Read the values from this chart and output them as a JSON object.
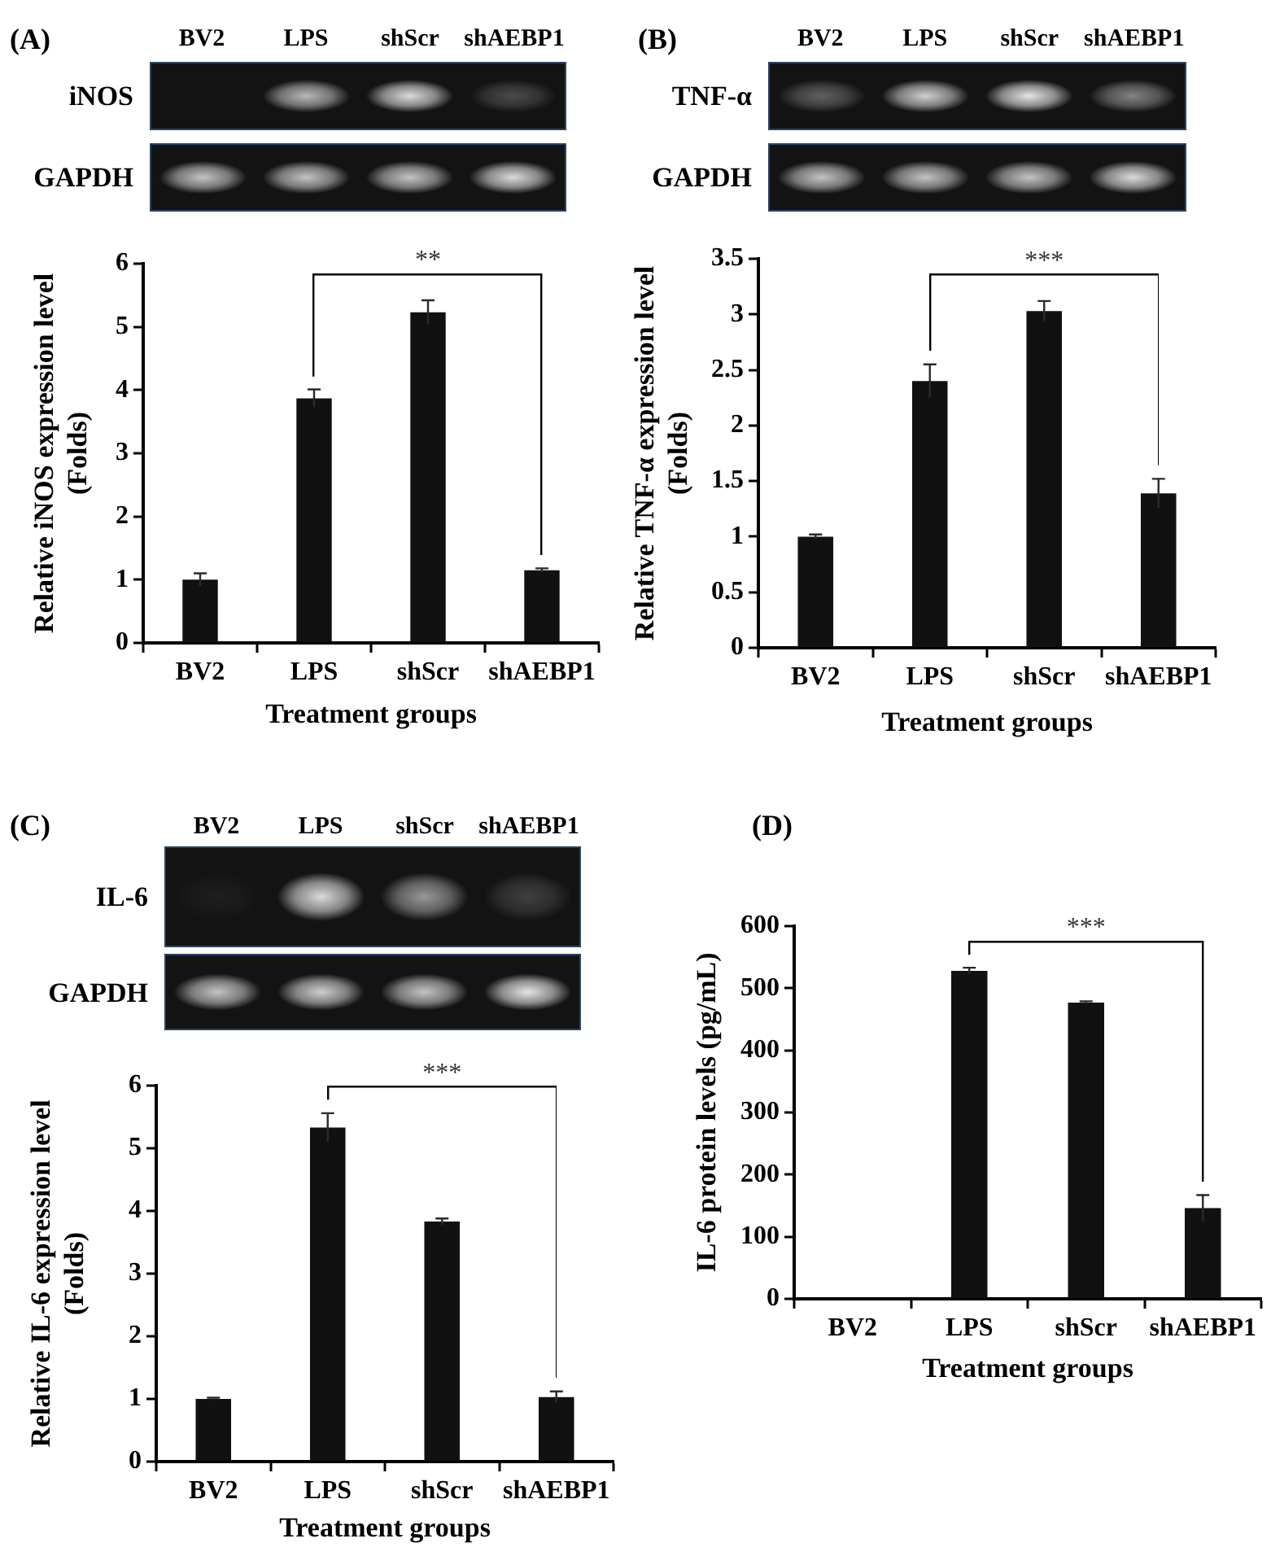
{
  "chart_data": [
    {
      "type": "bar",
      "title": "(A)",
      "categories": [
        "BV2",
        "LPS",
        "shScr",
        "shAEBP1"
      ],
      "values": [
        1.0,
        3.87,
        5.23,
        1.15
      ],
      "errors": [
        0.1,
        0.14,
        0.19,
        0.03
      ],
      "color": "#111111",
      "ylabel": "Relative iNOS expression level (Folds)",
      "xlabel": "Treatment groups",
      "ylim": [
        0,
        6
      ],
      "yticks": [
        0,
        1,
        2,
        3,
        4,
        5,
        6
      ],
      "annotations": [
        "**",
        "iNOS",
        "GAPDH"
      ]
    },
    {
      "type": "bar",
      "title": "(B)",
      "categories": [
        "BV2",
        "LPS",
        "shScr",
        "shAEBP1"
      ],
      "values": [
        1.0,
        2.4,
        3.03,
        1.39
      ],
      "errors": [
        0.02,
        0.15,
        0.09,
        0.13
      ],
      "color": "#111111",
      "ylabel": "Relative TNF-α expression level (Folds)",
      "xlabel": "Treatment groups",
      "ylim": [
        0,
        3.5
      ],
      "yticks": [
        0,
        0.5,
        1,
        1.5,
        2,
        2.5,
        3,
        3.5
      ],
      "annotations": [
        "***",
        "TNF-α",
        "GAPDH"
      ]
    },
    {
      "type": "bar",
      "title": "(C)",
      "categories": [
        "BV2",
        "LPS",
        "shScr",
        "shAEBP1"
      ],
      "values": [
        1.0,
        5.33,
        3.83,
        1.03
      ],
      "errors": [
        0.02,
        0.23,
        0.05,
        0.09
      ],
      "color": "#111111",
      "ylabel": "Relative IL-6 expression level (Folds)",
      "xlabel": "Treatment groups",
      "ylim": [
        0,
        6
      ],
      "yticks": [
        0,
        1,
        2,
        3,
        4,
        5,
        6
      ],
      "annotations": [
        "***",
        "IL-6",
        "GAPDH"
      ]
    },
    {
      "type": "bar",
      "title": "(D)",
      "categories": [
        "BV2",
        "LPS",
        "shScr",
        "shAEBP1"
      ],
      "values": [
        0,
        528,
        477,
        146
      ],
      "errors": [
        null,
        5,
        2,
        21
      ],
      "color": "#111111",
      "ylabel": "IL-6 protein levels (pg/mL)",
      "xlabel": "Treatment groups",
      "ylim": [
        0,
        600
      ],
      "yticks": [
        0,
        100,
        200,
        300,
        400,
        500,
        600
      ],
      "annotations": [
        "***"
      ]
    }
  ]
}
